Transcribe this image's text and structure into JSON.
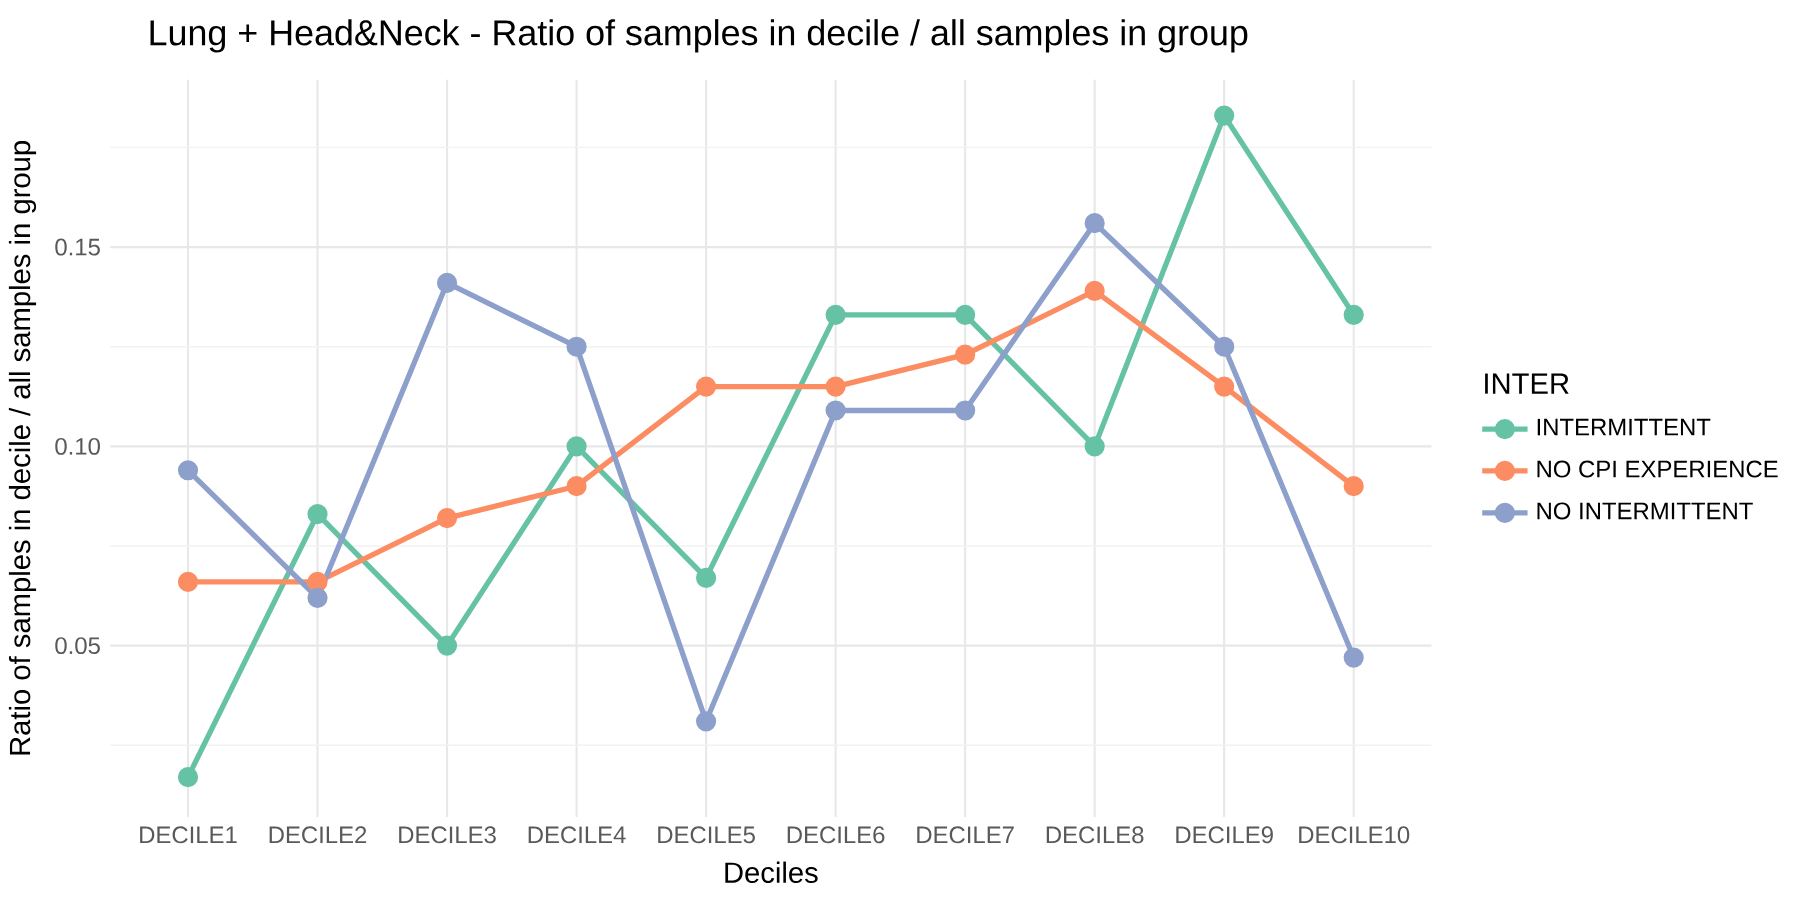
{
  "chart_data": {
    "type": "line",
    "title": "Lung + Head&Neck - Ratio of samples in decile / all samples in group",
    "xlabel": "Deciles",
    "ylabel": "Ratio of samples in decile / all samples in group",
    "legend_title": "INTER",
    "categories": [
      "DECILE1",
      "DECILE2",
      "DECILE3",
      "DECILE4",
      "DECILE5",
      "DECILE6",
      "DECILE7",
      "DECILE8",
      "DECILE9",
      "DECILE10"
    ],
    "series": [
      {
        "name": "INTERMITTENT",
        "color": "#66c2a5",
        "values": [
          0.017,
          0.083,
          0.05,
          0.1,
          0.067,
          0.133,
          0.133,
          0.1,
          0.183,
          0.133
        ]
      },
      {
        "name": "NO CPI EXPERIENCE",
        "color": "#fc8d62",
        "values": [
          0.066,
          0.066,
          0.082,
          0.09,
          0.115,
          0.115,
          0.123,
          0.139,
          0.115,
          0.09
        ]
      },
      {
        "name": "NO INTERMITTENT",
        "color": "#8da0cb",
        "values": [
          0.094,
          0.062,
          0.141,
          0.125,
          0.031,
          0.109,
          0.109,
          0.156,
          0.125,
          0.047
        ]
      }
    ],
    "ylim": [
      0.007,
      0.192
    ],
    "yticks": [
      {
        "value": 0.05,
        "label": "0.05"
      },
      {
        "value": 0.1,
        "label": "0.10"
      },
      {
        "value": 0.15,
        "label": "0.15"
      }
    ],
    "grid": true,
    "legend": "right",
    "marker": "circle",
    "line_style": "solid"
  }
}
